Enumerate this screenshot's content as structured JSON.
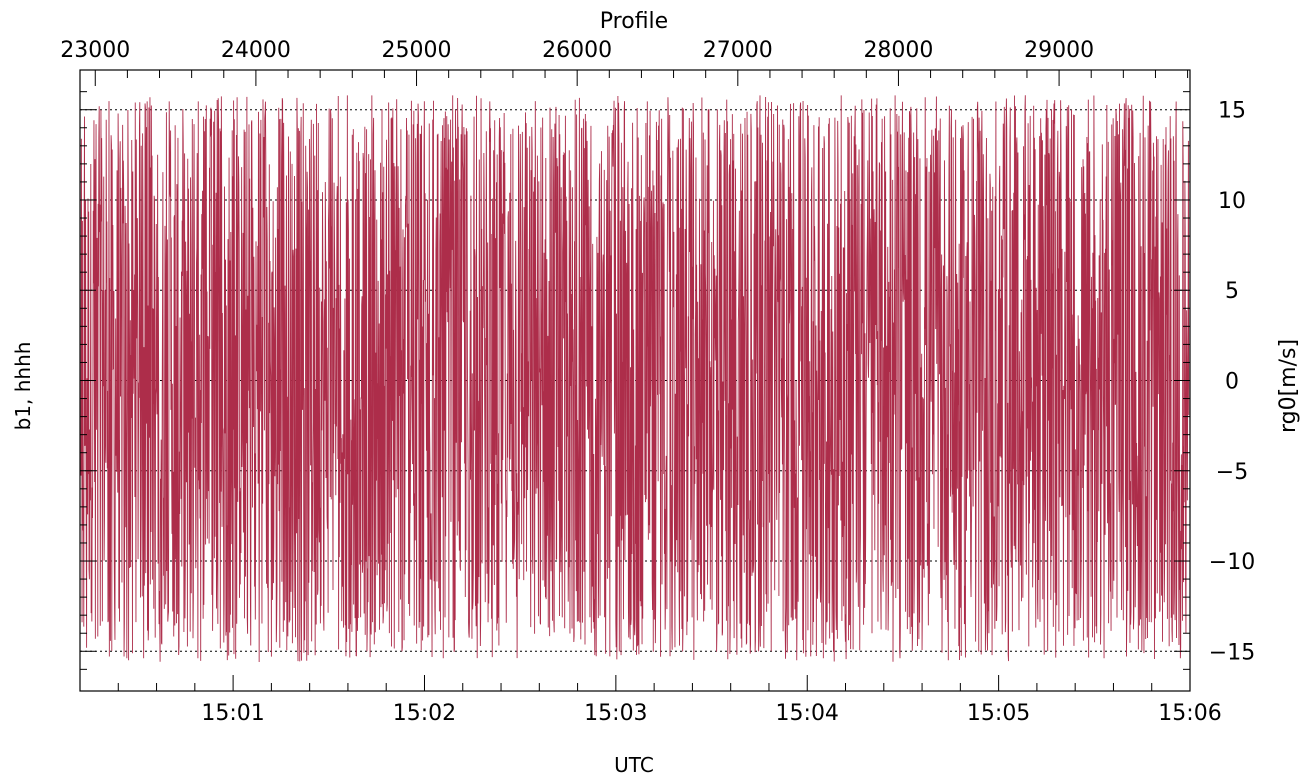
{
  "chart_data": {
    "type": "line",
    "title": "Profile",
    "xlabel": "UTC",
    "ylabel_left": "b1, hhhh",
    "ylabel_right": "rg0[m/s]",
    "ylim": [
      -17.2,
      17.2
    ],
    "y_ticks": [
      -15,
      -10,
      -5,
      0,
      5,
      10,
      15
    ],
    "y_tick_labels": [
      "−15",
      "−10",
      "−5",
      "0",
      "5",
      "10",
      "15"
    ],
    "x_bottom": {
      "range_minutes": [
        0,
        5.8
      ],
      "ticks": [
        0.8,
        1.8,
        2.8,
        3.8,
        4.8,
        5.8
      ],
      "tick_labels": [
        "15:01",
        "15:02",
        "15:03",
        "15:04",
        "15:05",
        "15:06"
      ]
    },
    "x_top": {
      "range": [
        22905,
        29815
      ],
      "ticks": [
        23000,
        24000,
        25000,
        26000,
        27000,
        28000,
        29000
      ],
      "tick_labels": [
        "23000",
        "24000",
        "25000",
        "26000",
        "27000",
        "28000",
        "29000"
      ]
    },
    "grid": "dotted horizontal at y ticks",
    "series": [
      {
        "color": "#ad2d4a",
        "description": "dense oscillating noise filling approximately -15.6 to 15.8 across entire x range",
        "envelope": [
          -15.6,
          15.8
        ]
      }
    ]
  }
}
